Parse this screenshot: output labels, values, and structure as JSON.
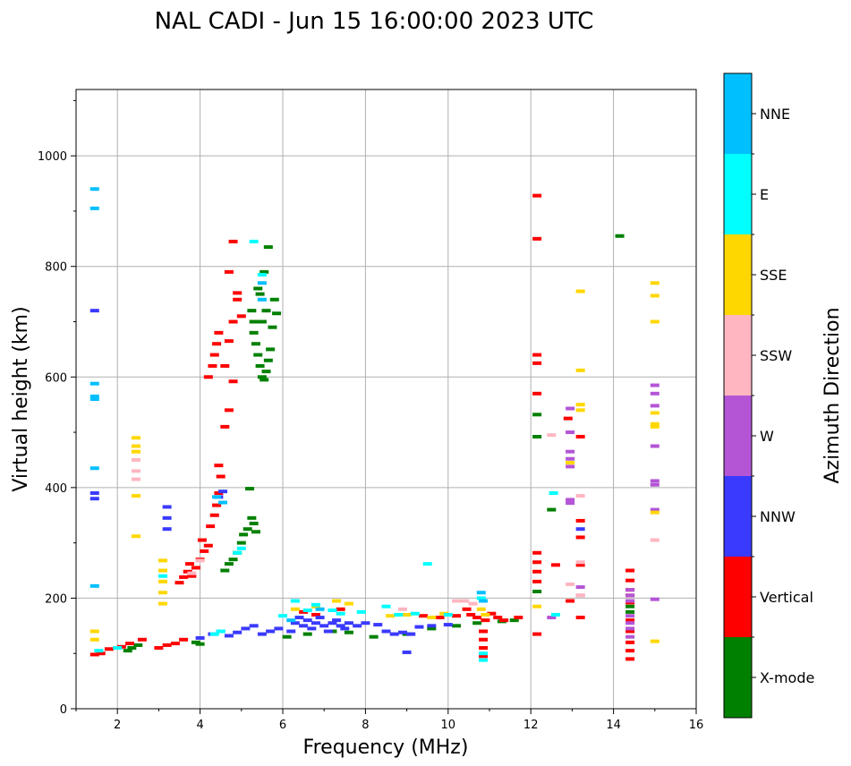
{
  "chart_data": {
    "type": "scatter",
    "title": "NAL CADI - Jun 15 16:00:00 2023 UTC",
    "xlabel": "Frequency (MHz)",
    "ylabel": "Virtual height (km)",
    "xlim": [
      1,
      16
    ],
    "ylim": [
      0,
      1120
    ],
    "xticks": [
      2,
      4,
      6,
      8,
      10,
      12,
      14,
      16
    ],
    "yticks": [
      0,
      200,
      400,
      600,
      800,
      1000
    ],
    "grid": true,
    "colorbar": {
      "label": "Azimuth Direction",
      "placement": "right",
      "categories": [
        {
          "name": "X-mode",
          "color": "#008000"
        },
        {
          "name": "Vertical",
          "color": "#ff0000"
        },
        {
          "name": "NNW",
          "color": "#3a3aff"
        },
        {
          "name": "W",
          "color": "#b455d6"
        },
        {
          "name": "SSW",
          "color": "#ffb6c1"
        },
        {
          "name": "SSE",
          "color": "#ffd700"
        },
        {
          "name": "E",
          "color": "#00ffff"
        },
        {
          "name": "NNE",
          "color": "#00bfff"
        }
      ]
    },
    "series": [
      {
        "name": "X-mode",
        "points": [
          [
            2.25,
            105
          ],
          [
            2.35,
            110
          ],
          [
            2.5,
            115
          ],
          [
            3.9,
            120
          ],
          [
            4.0,
            117
          ],
          [
            4.6,
            250
          ],
          [
            4.7,
            262
          ],
          [
            4.8,
            270
          ],
          [
            4.9,
            282
          ],
          [
            5.0,
            300
          ],
          [
            5.05,
            315
          ],
          [
            5.15,
            325
          ],
          [
            5.25,
            345
          ],
          [
            5.3,
            335
          ],
          [
            5.35,
            320
          ],
          [
            5.2,
            398
          ],
          [
            5.3,
            680
          ],
          [
            5.35,
            660
          ],
          [
            5.4,
            640
          ],
          [
            5.45,
            620
          ],
          [
            5.5,
            600
          ],
          [
            5.55,
            595
          ],
          [
            5.6,
            610
          ],
          [
            5.65,
            630
          ],
          [
            5.7,
            650
          ],
          [
            5.5,
            700
          ],
          [
            5.6,
            720
          ],
          [
            5.75,
            690
          ],
          [
            5.8,
            740
          ],
          [
            5.85,
            715
          ],
          [
            5.4,
            760
          ],
          [
            5.55,
            790
          ],
          [
            5.65,
            835
          ],
          [
            5.3,
            700
          ],
          [
            5.25,
            720
          ],
          [
            5.45,
            750
          ],
          [
            6.1,
            130
          ],
          [
            6.6,
            135
          ],
          [
            7.2,
            140
          ],
          [
            7.6,
            138
          ],
          [
            8.2,
            130
          ],
          [
            9.0,
            135
          ],
          [
            9.6,
            145
          ],
          [
            10.2,
            150
          ],
          [
            10.7,
            155
          ],
          [
            11.3,
            158
          ],
          [
            11.6,
            160
          ],
          [
            12.15,
            532
          ],
          [
            12.15,
            492
          ],
          [
            12.15,
            212
          ],
          [
            12.5,
            360
          ],
          [
            14.15,
            855
          ],
          [
            14.4,
            185
          ],
          [
            14.4,
            175
          ]
        ]
      },
      {
        "name": "Vertical",
        "points": [
          [
            1.45,
            98
          ],
          [
            1.6,
            100
          ],
          [
            1.8,
            108
          ],
          [
            2.1,
            112
          ],
          [
            2.3,
            118
          ],
          [
            2.6,
            125
          ],
          [
            3.0,
            110
          ],
          [
            3.2,
            115
          ],
          [
            3.4,
            118
          ],
          [
            3.6,
            125
          ],
          [
            3.5,
            228
          ],
          [
            3.6,
            238
          ],
          [
            3.7,
            248
          ],
          [
            3.8,
            240
          ],
          [
            3.9,
            255
          ],
          [
            3.75,
            262
          ],
          [
            4.0,
            270
          ],
          [
            4.1,
            285
          ],
          [
            4.2,
            295
          ],
          [
            4.05,
            305
          ],
          [
            4.25,
            330
          ],
          [
            4.35,
            350
          ],
          [
            4.4,
            368
          ],
          [
            4.45,
            390
          ],
          [
            4.5,
            420
          ],
          [
            4.45,
            440
          ],
          [
            4.2,
            600
          ],
          [
            4.3,
            620
          ],
          [
            4.35,
            640
          ],
          [
            4.4,
            660
          ],
          [
            4.45,
            680
          ],
          [
            4.6,
            620
          ],
          [
            4.7,
            665
          ],
          [
            4.8,
            700
          ],
          [
            4.9,
            740
          ],
          [
            4.9,
            752
          ],
          [
            5.0,
            710
          ],
          [
            4.7,
            790
          ],
          [
            4.8,
            845
          ],
          [
            4.6,
            510
          ],
          [
            4.7,
            540
          ],
          [
            4.8,
            592
          ],
          [
            6.5,
            175
          ],
          [
            6.8,
            170
          ],
          [
            7.4,
            180
          ],
          [
            9.4,
            168
          ],
          [
            9.8,
            165
          ],
          [
            10.2,
            168
          ],
          [
            10.45,
            180
          ],
          [
            10.55,
            170
          ],
          [
            10.7,
            165
          ],
          [
            10.9,
            160
          ],
          [
            11.05,
            172
          ],
          [
            11.2,
            165
          ],
          [
            11.35,
            160
          ],
          [
            11.7,
            165
          ],
          [
            12.15,
            928
          ],
          [
            12.15,
            850
          ],
          [
            12.15,
            640
          ],
          [
            12.15,
            625
          ],
          [
            12.15,
            570
          ],
          [
            12.15,
            282
          ],
          [
            12.15,
            265
          ],
          [
            12.15,
            248
          ],
          [
            12.15,
            230
          ],
          [
            12.15,
            135
          ],
          [
            12.6,
            260
          ],
          [
            12.9,
            525
          ],
          [
            13.2,
            492
          ],
          [
            13.2,
            340
          ],
          [
            13.2,
            310
          ],
          [
            13.2,
            260
          ],
          [
            13.2,
            165
          ],
          [
            12.95,
            195
          ],
          [
            14.4,
            250
          ],
          [
            14.4,
            232
          ],
          [
            14.4,
            215
          ],
          [
            14.4,
            205
          ],
          [
            14.4,
            192
          ],
          [
            14.4,
            160
          ],
          [
            14.4,
            140
          ],
          [
            14.4,
            120
          ],
          [
            14.4,
            105
          ],
          [
            14.4,
            90
          ],
          [
            10.85,
            95
          ],
          [
            10.85,
            110
          ],
          [
            10.85,
            125
          ],
          [
            10.85,
            140
          ]
        ]
      },
      {
        "name": "NNW",
        "points": [
          [
            1.45,
            380
          ],
          [
            1.45,
            390
          ],
          [
            1.45,
            720
          ],
          [
            3.2,
            365
          ],
          [
            3.2,
            345
          ],
          [
            3.2,
            325
          ],
          [
            4.0,
            128
          ],
          [
            4.3,
            135
          ],
          [
            4.5,
            140
          ],
          [
            4.7,
            132
          ],
          [
            4.9,
            138
          ],
          [
            5.1,
            145
          ],
          [
            5.3,
            150
          ],
          [
            5.5,
            135
          ],
          [
            5.7,
            140
          ],
          [
            5.9,
            145
          ],
          [
            6.2,
            140
          ],
          [
            6.3,
            155
          ],
          [
            6.4,
            165
          ],
          [
            6.5,
            150
          ],
          [
            6.6,
            160
          ],
          [
            6.7,
            145
          ],
          [
            6.8,
            155
          ],
          [
            6.9,
            165
          ],
          [
            7.0,
            150
          ],
          [
            7.1,
            140
          ],
          [
            7.2,
            155
          ],
          [
            7.3,
            160
          ],
          [
            7.4,
            150
          ],
          [
            7.5,
            145
          ],
          [
            7.6,
            155
          ],
          [
            7.8,
            150
          ],
          [
            8.0,
            155
          ],
          [
            8.3,
            152
          ],
          [
            8.5,
            140
          ],
          [
            8.7,
            135
          ],
          [
            8.9,
            138
          ],
          [
            9.1,
            135
          ],
          [
            9.3,
            148
          ],
          [
            9.6,
            150
          ],
          [
            10.0,
            152
          ],
          [
            9.0,
            102
          ],
          [
            13.2,
            325
          ],
          [
            4.55,
            393
          ],
          [
            4.45,
            383
          ]
        ]
      },
      {
        "name": "W",
        "points": [
          [
            12.95,
            543
          ],
          [
            12.95,
            500
          ],
          [
            12.95,
            465
          ],
          [
            12.95,
            452
          ],
          [
            12.95,
            438
          ],
          [
            12.95,
            378
          ],
          [
            12.95,
            372
          ],
          [
            13.2,
            220
          ],
          [
            13.2,
            205
          ],
          [
            12.5,
            165
          ],
          [
            14.4,
            215
          ],
          [
            14.4,
            205
          ],
          [
            14.4,
            195
          ],
          [
            14.4,
            168
          ],
          [
            14.4,
            155
          ],
          [
            14.4,
            145
          ],
          [
            14.4,
            130
          ],
          [
            15.0,
            585
          ],
          [
            15.0,
            570
          ],
          [
            15.0,
            548
          ],
          [
            15.0,
            475
          ],
          [
            15.0,
            412
          ],
          [
            15.0,
            405
          ],
          [
            15.0,
            360
          ],
          [
            15.0,
            198
          ]
        ]
      },
      {
        "name": "SSW",
        "points": [
          [
            2.45,
            450
          ],
          [
            2.45,
            430
          ],
          [
            2.45,
            415
          ],
          [
            3.8,
            245
          ],
          [
            4.0,
            268
          ],
          [
            12.5,
            495
          ],
          [
            12.95,
            225
          ],
          [
            13.2,
            385
          ],
          [
            13.2,
            265
          ],
          [
            13.2,
            205
          ],
          [
            15.0,
            305
          ],
          [
            10.2,
            195
          ],
          [
            10.4,
            195
          ],
          [
            10.6,
            190
          ],
          [
            8.9,
            180
          ]
        ]
      },
      {
        "name": "SSE",
        "points": [
          [
            1.45,
            140
          ],
          [
            1.45,
            125
          ],
          [
            2.45,
            490
          ],
          [
            2.45,
            475
          ],
          [
            2.45,
            465
          ],
          [
            2.45,
            385
          ],
          [
            2.45,
            312
          ],
          [
            3.1,
            268
          ],
          [
            3.1,
            250
          ],
          [
            3.1,
            230
          ],
          [
            3.1,
            210
          ],
          [
            3.1,
            190
          ],
          [
            6.3,
            180
          ],
          [
            6.8,
            185
          ],
          [
            7.3,
            195
          ],
          [
            7.6,
            190
          ],
          [
            8.6,
            168
          ],
          [
            9.0,
            170
          ],
          [
            9.6,
            165
          ],
          [
            9.9,
            172
          ],
          [
            10.8,
            180
          ],
          [
            10.9,
            170
          ],
          [
            12.15,
            185
          ],
          [
            12.95,
            445
          ],
          [
            13.2,
            755
          ],
          [
            13.2,
            612
          ],
          [
            13.2,
            550
          ],
          [
            13.2,
            540
          ],
          [
            15.0,
            770
          ],
          [
            15.0,
            747
          ],
          [
            15.0,
            700
          ],
          [
            15.0,
            535
          ],
          [
            15.0,
            515
          ],
          [
            15.0,
            510
          ],
          [
            15.0,
            355
          ],
          [
            15.0,
            122
          ]
        ]
      },
      {
        "name": "E",
        "points": [
          [
            1.55,
            105
          ],
          [
            2.0,
            110
          ],
          [
            3.1,
            240
          ],
          [
            4.35,
            135
          ],
          [
            4.5,
            140
          ],
          [
            4.9,
            282
          ],
          [
            5.0,
            290
          ],
          [
            5.3,
            845
          ],
          [
            5.5,
            785
          ],
          [
            6.0,
            168
          ],
          [
            6.3,
            195
          ],
          [
            6.6,
            178
          ],
          [
            6.8,
            188
          ],
          [
            7.2,
            178
          ],
          [
            7.4,
            172
          ],
          [
            7.9,
            175
          ],
          [
            8.5,
            185
          ],
          [
            8.8,
            170
          ],
          [
            9.2,
            172
          ],
          [
            9.5,
            262
          ],
          [
            10.0,
            170
          ],
          [
            10.8,
            200
          ],
          [
            10.85,
            88
          ],
          [
            10.85,
            100
          ],
          [
            12.55,
            390
          ],
          [
            12.6,
            170
          ]
        ]
      },
      {
        "name": "NNE",
        "points": [
          [
            1.45,
            940
          ],
          [
            1.45,
            905
          ],
          [
            1.45,
            588
          ],
          [
            1.45,
            565
          ],
          [
            1.45,
            560
          ],
          [
            1.45,
            435
          ],
          [
            1.45,
            222
          ],
          [
            4.4,
            383
          ],
          [
            4.55,
            373
          ],
          [
            5.5,
            770
          ],
          [
            5.5,
            740
          ],
          [
            6.2,
            160
          ],
          [
            6.9,
            180
          ],
          [
            10.8,
            210
          ],
          [
            10.85,
            195
          ]
        ]
      }
    ]
  }
}
